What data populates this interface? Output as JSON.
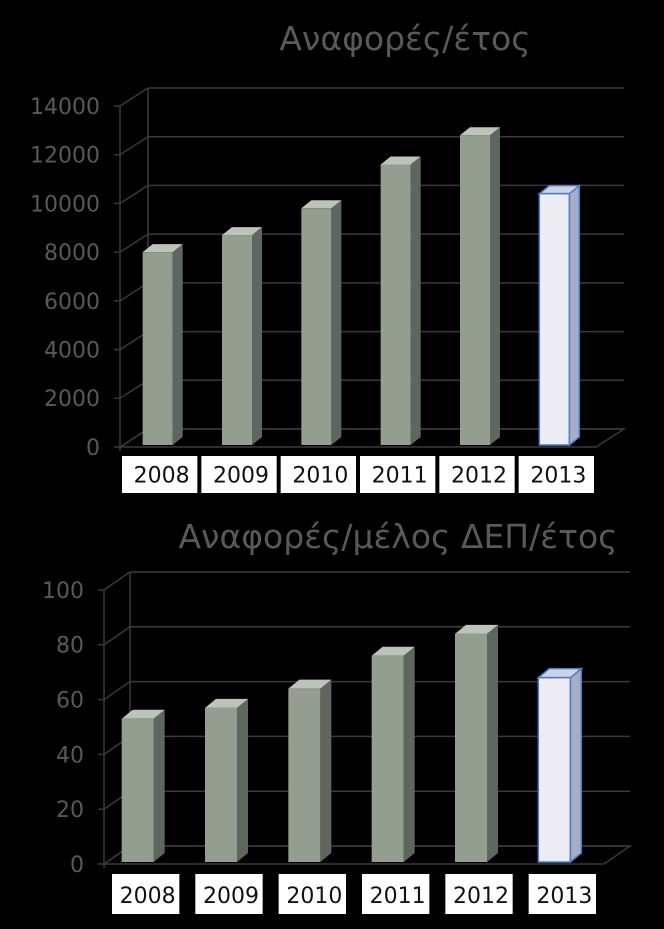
{
  "colors": {
    "background": "#000000",
    "bar_front": "#939E91",
    "bar_side": "#5E675D",
    "bar_top": "#BCC4BA",
    "highlight_front": "#ECECF2",
    "highlight_side": "#A7ADC6",
    "highlight_top": "#CED2E4",
    "highlight_stroke": "#4A7EC9",
    "gridline": "#3A3A3A",
    "axis_text": "#595959",
    "xlabel_box": "#FFFFFF"
  },
  "chart_data": [
    {
      "type": "bar",
      "title": "Αναφορές/έτος",
      "categories": [
        "2008",
        "2009",
        "2010",
        "2011",
        "2012",
        "2013"
      ],
      "values": [
        8000,
        8700,
        9800,
        11600,
        12800,
        10400
      ],
      "highlight_index": 5,
      "ylim": [
        0,
        14000
      ],
      "yticks": [
        "0",
        "2000",
        "4000",
        "6000",
        "8000",
        "10000",
        "12000",
        "14000"
      ],
      "grid": true,
      "legend": "none"
    },
    {
      "type": "bar",
      "title": "Αναφορές/μέλος ΔΕΠ/έτος",
      "categories": [
        "2008",
        "2009",
        "2010",
        "2011",
        "2012",
        "2013"
      ],
      "values": [
        53,
        57,
        64,
        76,
        84,
        68
      ],
      "highlight_index": 5,
      "ylim": [
        0,
        100
      ],
      "yticks": [
        "0",
        "20",
        "40",
        "60",
        "80",
        "100"
      ],
      "grid": true,
      "legend": "none"
    }
  ]
}
